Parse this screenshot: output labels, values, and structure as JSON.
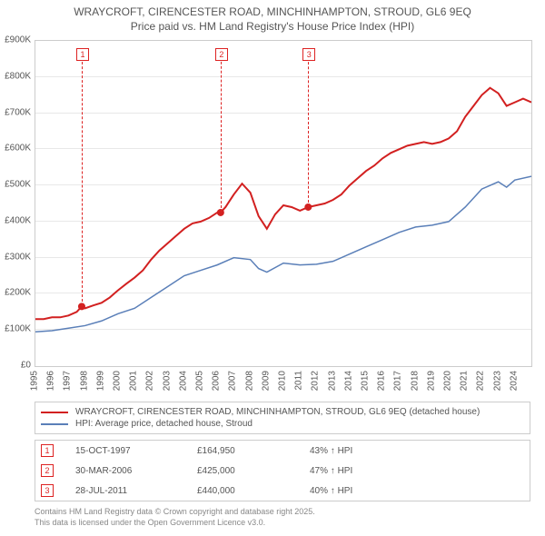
{
  "title_line1": "WRAYCROFT, CIRENCESTER ROAD, MINCHINHAMPTON, STROUD, GL6 9EQ",
  "title_line2": "Price paid vs. HM Land Registry's House Price Index (HPI)",
  "chart": {
    "type": "line",
    "xlim": [
      1995,
      2025
    ],
    "ylim": [
      0,
      900000
    ],
    "ytick_step": 100000,
    "ytick_labels": [
      "£0",
      "£100K",
      "£200K",
      "£300K",
      "£400K",
      "£500K",
      "£600K",
      "£700K",
      "£800K",
      "£900K"
    ],
    "xticks": [
      1995,
      1996,
      1997,
      1998,
      1999,
      2000,
      2001,
      2002,
      2003,
      2004,
      2005,
      2006,
      2007,
      2008,
      2009,
      2010,
      2011,
      2012,
      2013,
      2014,
      2015,
      2016,
      2017,
      2018,
      2019,
      2020,
      2021,
      2022,
      2023,
      2024
    ],
    "grid_color": "#e8e8e8",
    "background_color": "#ffffff",
    "series": [
      {
        "name": "price_paid",
        "color": "#d22020",
        "line_width": 2,
        "points": [
          [
            1995,
            130000
          ],
          [
            1995.5,
            130000
          ],
          [
            1996,
            135000
          ],
          [
            1996.5,
            135000
          ],
          [
            1997,
            140000
          ],
          [
            1997.5,
            150000
          ],
          [
            1997.8,
            165000
          ],
          [
            1998,
            160000
          ],
          [
            1998.5,
            168000
          ],
          [
            1999,
            175000
          ],
          [
            1999.5,
            190000
          ],
          [
            2000,
            210000
          ],
          [
            2000.5,
            228000
          ],
          [
            2001,
            245000
          ],
          [
            2001.5,
            265000
          ],
          [
            2002,
            295000
          ],
          [
            2002.5,
            320000
          ],
          [
            2003,
            340000
          ],
          [
            2003.5,
            360000
          ],
          [
            2004,
            380000
          ],
          [
            2004.5,
            395000
          ],
          [
            2005,
            400000
          ],
          [
            2005.5,
            410000
          ],
          [
            2006,
            425000
          ],
          [
            2006.2,
            425000
          ],
          [
            2006.5,
            440000
          ],
          [
            2007,
            475000
          ],
          [
            2007.5,
            505000
          ],
          [
            2008,
            480000
          ],
          [
            2008.5,
            415000
          ],
          [
            2009,
            380000
          ],
          [
            2009.5,
            420000
          ],
          [
            2010,
            445000
          ],
          [
            2010.5,
            440000
          ],
          [
            2011,
            430000
          ],
          [
            2011.5,
            440000
          ],
          [
            2012,
            445000
          ],
          [
            2012.5,
            450000
          ],
          [
            2013,
            460000
          ],
          [
            2013.5,
            475000
          ],
          [
            2014,
            500000
          ],
          [
            2014.5,
            520000
          ],
          [
            2015,
            540000
          ],
          [
            2015.5,
            555000
          ],
          [
            2016,
            575000
          ],
          [
            2016.5,
            590000
          ],
          [
            2017,
            600000
          ],
          [
            2017.5,
            610000
          ],
          [
            2018,
            615000
          ],
          [
            2018.5,
            620000
          ],
          [
            2019,
            615000
          ],
          [
            2019.5,
            620000
          ],
          [
            2020,
            630000
          ],
          [
            2020.5,
            650000
          ],
          [
            2021,
            690000
          ],
          [
            2021.5,
            720000
          ],
          [
            2022,
            750000
          ],
          [
            2022.5,
            770000
          ],
          [
            2023,
            755000
          ],
          [
            2023.5,
            720000
          ],
          [
            2024,
            730000
          ],
          [
            2024.5,
            740000
          ],
          [
            2025,
            730000
          ]
        ],
        "markers": [
          {
            "x": 1997.8,
            "y": 165000,
            "label": "1"
          },
          {
            "x": 2006.2,
            "y": 425000,
            "label": "2"
          },
          {
            "x": 2011.5,
            "y": 440000,
            "label": "3"
          }
        ]
      },
      {
        "name": "hpi",
        "color": "#5a7fb8",
        "line_width": 1.5,
        "points": [
          [
            1995,
            95000
          ],
          [
            1996,
            98000
          ],
          [
            1997,
            105000
          ],
          [
            1998,
            112000
          ],
          [
            1999,
            125000
          ],
          [
            2000,
            145000
          ],
          [
            2001,
            160000
          ],
          [
            2002,
            190000
          ],
          [
            2003,
            220000
          ],
          [
            2004,
            250000
          ],
          [
            2005,
            265000
          ],
          [
            2006,
            280000
          ],
          [
            2007,
            300000
          ],
          [
            2008,
            295000
          ],
          [
            2008.5,
            270000
          ],
          [
            2009,
            260000
          ],
          [
            2010,
            285000
          ],
          [
            2011,
            280000
          ],
          [
            2012,
            282000
          ],
          [
            2013,
            290000
          ],
          [
            2014,
            310000
          ],
          [
            2015,
            330000
          ],
          [
            2016,
            350000
          ],
          [
            2017,
            370000
          ],
          [
            2018,
            385000
          ],
          [
            2019,
            390000
          ],
          [
            2020,
            400000
          ],
          [
            2021,
            440000
          ],
          [
            2022,
            490000
          ],
          [
            2023,
            510000
          ],
          [
            2023.5,
            495000
          ],
          [
            2024,
            515000
          ],
          [
            2025,
            525000
          ]
        ]
      }
    ]
  },
  "legend": {
    "items": [
      {
        "color": "#d22020",
        "label": "WRAYCROFT, CIRENCESTER ROAD, MINCHINHAMPTON, STROUD, GL6 9EQ (detached house)"
      },
      {
        "color": "#5a7fb8",
        "label": "HPI: Average price, detached house, Stroud"
      }
    ]
  },
  "notes": [
    {
      "n": "1",
      "date": "15-OCT-1997",
      "price": "£164,950",
      "pct": "43% ↑ HPI"
    },
    {
      "n": "2",
      "date": "30-MAR-2006",
      "price": "£425,000",
      "pct": "47% ↑ HPI"
    },
    {
      "n": "3",
      "date": "28-JUL-2011",
      "price": "£440,000",
      "pct": "40% ↑ HPI"
    }
  ],
  "attribution_line1": "Contains HM Land Registry data © Crown copyright and database right 2025.",
  "attribution_line2": "This data is licensed under the Open Government Licence v3.0."
}
